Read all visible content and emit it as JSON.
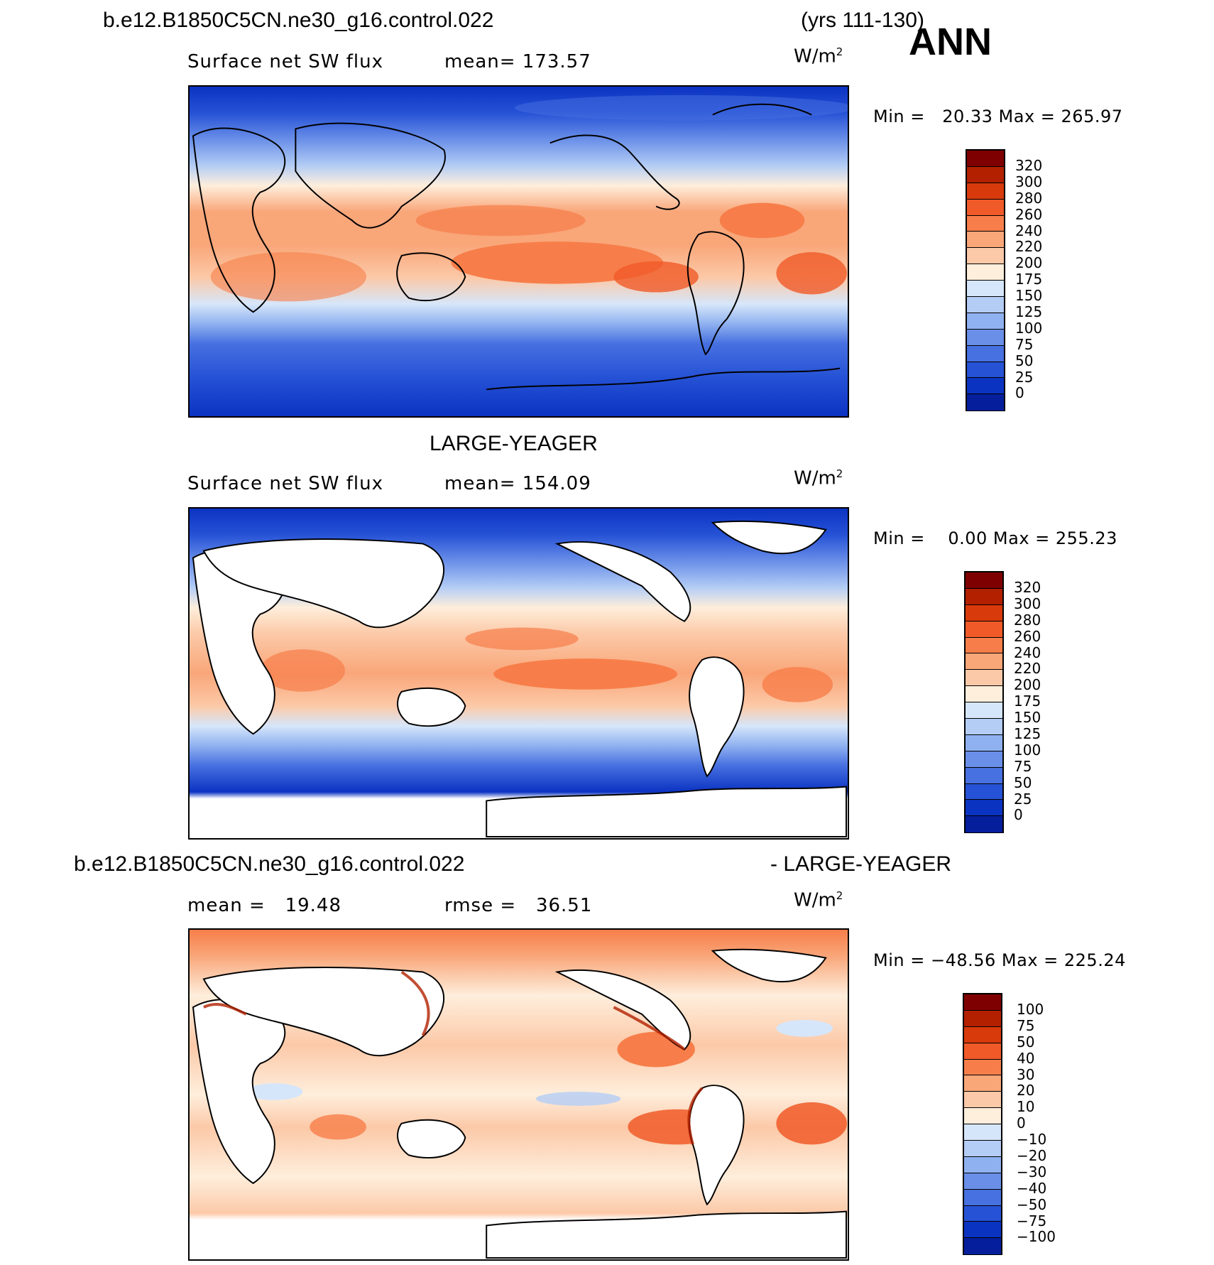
{
  "header": {
    "case_name": "b.e12.B1850C5CN.ne30_g16.control.022",
    "years": "(yrs 111-130)",
    "season": "ANN"
  },
  "panels": [
    {
      "title": "",
      "variable": "Surface net SW flux",
      "mean_text": "mean= 173.57",
      "units": "W/m",
      "units_exp": "2",
      "minmax": "Min =   20.33 Max = 265.97",
      "colorbar_labels": [
        "320",
        "300",
        "280",
        "260",
        "240",
        "220",
        "200",
        "175",
        "150",
        "125",
        "100",
        "75",
        "50",
        "25",
        "0"
      ]
    },
    {
      "title": "LARGE-YEAGER",
      "variable": "Surface net SW flux",
      "mean_text": "mean= 154.09",
      "units": "W/m",
      "units_exp": "2",
      "minmax": "Min =    0.00 Max = 255.23",
      "colorbar_labels": [
        "320",
        "300",
        "280",
        "260",
        "240",
        "220",
        "200",
        "175",
        "150",
        "125",
        "100",
        "75",
        "50",
        "25",
        "0"
      ]
    },
    {
      "title_left": "b.e12.B1850C5CN.ne30_g16.control.022",
      "title_right": "- LARGE-YEAGER",
      "mean_text": "mean =   19.48",
      "rmse_text": "rmse =   36.51",
      "units": "W/m",
      "units_exp": "2",
      "minmax": "Min = −48.56 Max = 225.24",
      "colorbar_labels": [
        "100",
        "75",
        "50",
        "40",
        "30",
        "20",
        "10",
        "0",
        "−10",
        "−20",
        "−30",
        "−40",
        "−50",
        "−75",
        "−100"
      ]
    }
  ],
  "colors": {
    "abs_scale": [
      "#7f0000",
      "#b22000",
      "#d83a0b",
      "#f05a28",
      "#f77e4a",
      "#f9a679",
      "#fcc9a8",
      "#feeedc",
      "#d6e6fa",
      "#b4cdf5",
      "#8fb1f0",
      "#6a8fe8",
      "#4770e0",
      "#2652d6",
      "#0b33c2",
      "#041e9c"
    ],
    "diff_scale": [
      "#7f0000",
      "#b22000",
      "#d83a0b",
      "#f05a28",
      "#f77e4a",
      "#f9a679",
      "#fcc9a8",
      "#feeedc",
      "#d6e6fa",
      "#b4cdf5",
      "#8fb1f0",
      "#6a8fe8",
      "#4770e0",
      "#2652d6",
      "#0b33c2",
      "#041e9c"
    ]
  }
}
